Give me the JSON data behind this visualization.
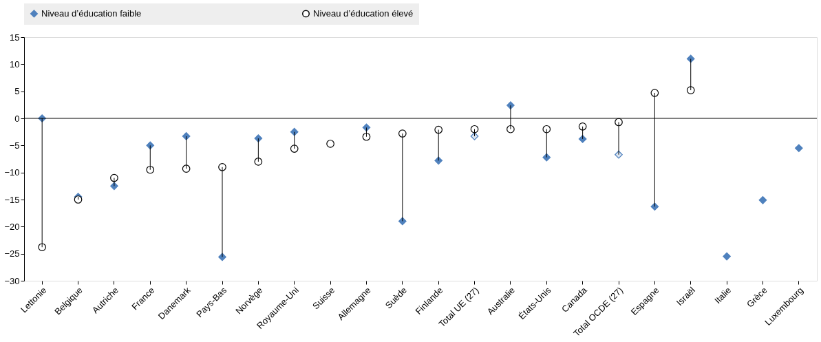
{
  "chart_data": {
    "type": "scatter",
    "categories": [
      "Lettonie",
      "Belgique",
      "Autriche",
      "France",
      "Danemark",
      "Pays-Bas",
      "Norvège",
      "Royaume-Uni",
      "Suisse",
      "Allemagne",
      "Suède",
      "Finlande",
      "Total UE (27)",
      "Australie",
      "États-Unis",
      "Canada",
      "Total OCDE (27)",
      "Espagne",
      "Israël",
      "Italie",
      "Grèce",
      "Luxembourg"
    ],
    "series": [
      {
        "name": "Niveau d’éducation faible",
        "color": "#4f81bd",
        "marker": "diamond",
        "values": [
          0,
          -14.5,
          -12.5,
          -5,
          -3.3,
          -25.6,
          -3.7,
          -2.5,
          null,
          -1.7,
          -19,
          -7.8,
          -3.3,
          2.4,
          -7.2,
          -3.8,
          -6.7,
          -16.3,
          11,
          -25.5,
          -15.1,
          -5.5
        ],
        "colors": [
          "#4f81bd",
          "#4f81bd",
          "#4f81bd",
          "#4f81bd",
          "#4f81bd",
          "#4f81bd",
          "#4f81bd",
          "#4f81bd",
          "#4f81bd",
          "#4f81bd",
          "#4f81bd",
          "#4f81bd",
          "#dce6f2",
          "#4f81bd",
          "#4f81bd",
          "#4f81bd",
          "#dce6f2",
          "#4f81bd",
          "#4f81bd",
          "#4f81bd",
          "#4f81bd",
          "#4f81bd"
        ]
      },
      {
        "name": "Niveau d’éducation élevé",
        "color": "#000000",
        "marker": "circle",
        "values": [
          -23.8,
          -15,
          -11,
          -9.5,
          -9.3,
          -9,
          -8,
          -5.6,
          -4.7,
          -3.4,
          -2.8,
          -2.1,
          -2,
          -2,
          -2,
          -1.5,
          -0.7,
          4.7,
          5.2,
          null,
          null,
          null
        ]
      }
    ],
    "ylim": [
      -30,
      15
    ],
    "yticks": [
      -30,
      -25,
      -20,
      -15,
      -10,
      -5,
      0,
      5,
      10,
      15
    ],
    "ref_lines": [
      {
        "axis": "y",
        "value": 0,
        "color": "#000000"
      }
    ],
    "grid": false,
    "legend": "top"
  }
}
